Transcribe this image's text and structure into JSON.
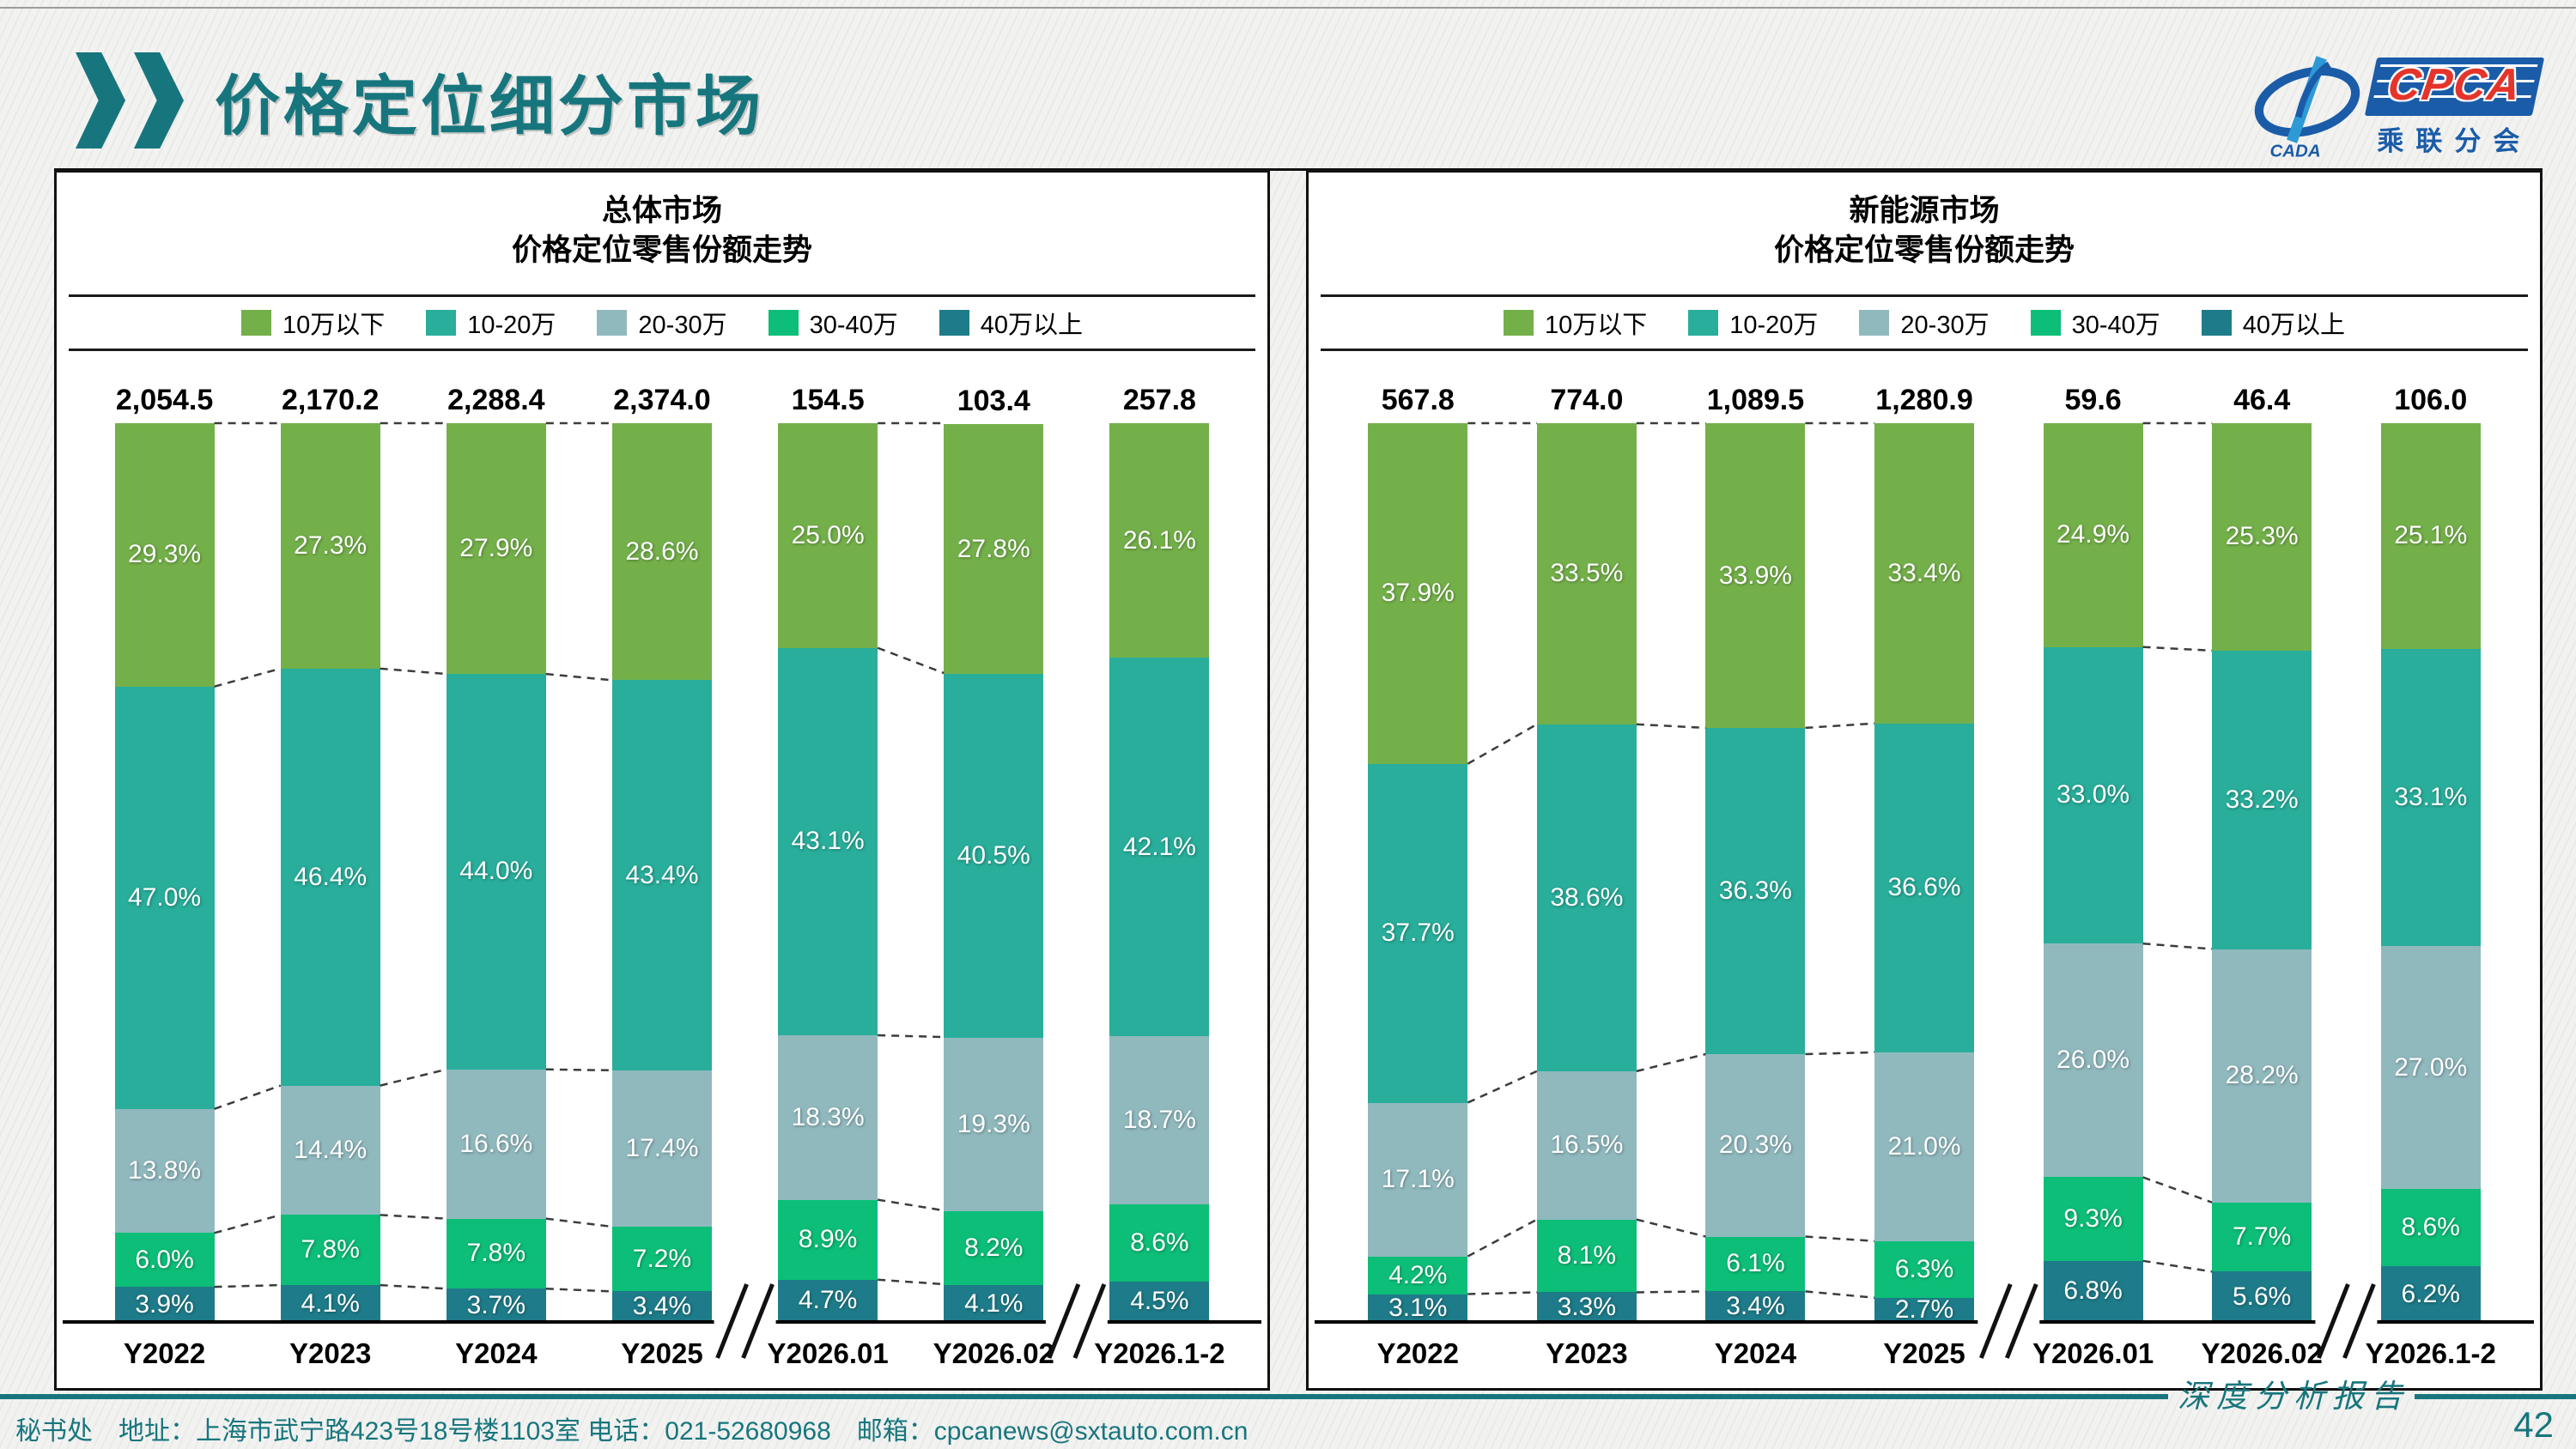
{
  "header": {
    "title": "价格定位细分市场"
  },
  "logo": {
    "cada_text": "CADA",
    "cpca_text": "CPCA",
    "subtitle": "乘联分会"
  },
  "footer": {
    "info": "秘书处　地址：上海市武宁路423号18号楼1103室 电话：021-52680968　邮箱：cpcanews@sxtauto.com.cn",
    "report_type": "深度分析报告",
    "page_number": "42"
  },
  "chart_data": [
    {
      "type": "bar",
      "stacked": true,
      "title_line1": "总体市场",
      "title_line2": "价格定位零售份额走势",
      "categories": [
        "Y2022",
        "Y2023",
        "Y2024",
        "Y2025",
        "Y2026.01",
        "Y2026.02",
        "Y2026.1-2"
      ],
      "totals": [
        "2,054.5",
        "2,170.2",
        "2,288.4",
        "2,374.0",
        "154.5",
        "103.4",
        "257.8"
      ],
      "series": [
        {
          "name": "10万以下",
          "color": "#74b04a",
          "values": [
            29.3,
            27.3,
            27.9,
            28.6,
            25.0,
            27.8,
            26.1
          ]
        },
        {
          "name": "10-20万",
          "color": "#28ae9b",
          "values": [
            47.0,
            46.4,
            44.0,
            43.4,
            43.1,
            40.5,
            42.1
          ]
        },
        {
          "name": "20-30万",
          "color": "#90b9be",
          "values": [
            13.8,
            14.4,
            16.6,
            17.4,
            18.3,
            19.3,
            18.7
          ]
        },
        {
          "name": "30-40万",
          "color": "#0cbe77",
          "values": [
            6.0,
            7.8,
            7.8,
            7.2,
            8.9,
            8.2,
            8.6
          ]
        },
        {
          "name": "40万以上",
          "color": "#1e7b89",
          "values": [
            3.9,
            4.1,
            3.7,
            3.4,
            4.7,
            4.1,
            4.5
          ]
        }
      ],
      "ylim": [
        0,
        100
      ],
      "legend_position": "top",
      "axis_breaks_after_category_index": [
        3,
        5
      ]
    },
    {
      "type": "bar",
      "stacked": true,
      "title_line1": "新能源市场",
      "title_line2": "价格定位零售份额走势",
      "categories": [
        "Y2022",
        "Y2023",
        "Y2024",
        "Y2025",
        "Y2026.01",
        "Y2026.02",
        "Y2026.1-2"
      ],
      "totals": [
        "567.8",
        "774.0",
        "1,089.5",
        "1,280.9",
        "59.6",
        "46.4",
        "106.0"
      ],
      "series": [
        {
          "name": "10万以下",
          "color": "#74b04a",
          "values": [
            37.9,
            33.5,
            33.9,
            33.4,
            24.9,
            25.3,
            25.1
          ]
        },
        {
          "name": "10-20万",
          "color": "#28ae9b",
          "values": [
            37.7,
            38.6,
            36.3,
            36.6,
            33.0,
            33.2,
            33.1
          ]
        },
        {
          "name": "20-30万",
          "color": "#90b9be",
          "values": [
            17.1,
            16.5,
            20.3,
            21.0,
            26.0,
            28.2,
            27.0
          ]
        },
        {
          "name": "30-40万",
          "color": "#0cbe77",
          "values": [
            4.2,
            8.1,
            6.1,
            6.3,
            9.3,
            7.7,
            8.6
          ]
        },
        {
          "name": "40万以上",
          "color": "#1e7b89",
          "values": [
            3.1,
            3.3,
            3.4,
            2.7,
            6.8,
            5.6,
            6.2
          ]
        }
      ],
      "ylim": [
        0,
        100
      ],
      "legend_position": "top",
      "axis_breaks_after_category_index": [
        3,
        5
      ]
    }
  ]
}
